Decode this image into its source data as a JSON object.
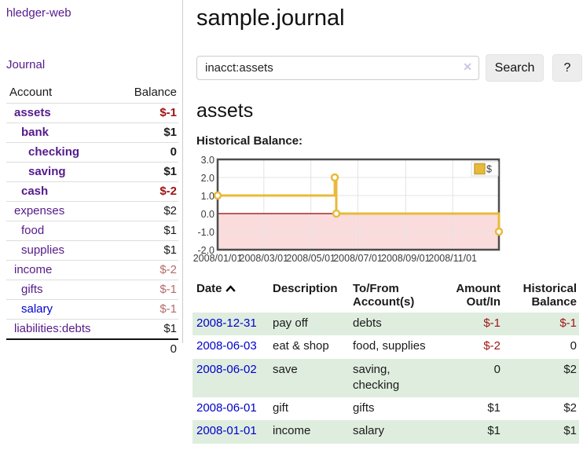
{
  "brand": "hledger-web",
  "nav": {
    "journal": "Journal"
  },
  "sidebar": {
    "account_header": "Account",
    "balance_header": "Balance",
    "rows": [
      {
        "name": "assets",
        "balance": "$-1"
      },
      {
        "name": "bank",
        "balance": "$1"
      },
      {
        "name": "checking",
        "balance": "0"
      },
      {
        "name": "saving",
        "balance": "$1"
      },
      {
        "name": "cash",
        "balance": "$-2"
      },
      {
        "name": "expenses",
        "balance": "$2"
      },
      {
        "name": "food",
        "balance": "$1"
      },
      {
        "name": "supplies",
        "balance": "$1"
      },
      {
        "name": "income",
        "balance": "$-2"
      },
      {
        "name": "gifts",
        "balance": "$-1"
      },
      {
        "name": "salary",
        "balance": "$-1"
      },
      {
        "name": "liabilities:debts",
        "balance": "$1"
      }
    ],
    "total": "0"
  },
  "header": {
    "title": "sample.journal"
  },
  "search": {
    "value": "inacct:assets",
    "clear_icon": "✕",
    "search_button": "Search",
    "help_button": "?"
  },
  "account_page": {
    "title": "assets",
    "chart_title": "Historical Balance:"
  },
  "chart_data": {
    "type": "line",
    "title": "Historical Balance:",
    "step": true,
    "x_range": [
      "2008-01-01",
      "2008-12-31"
    ],
    "ylim": [
      -2,
      3
    ],
    "series": [
      {
        "name": "$",
        "color": "#e8ba3c",
        "points": [
          [
            "2008-01-01",
            1
          ],
          [
            "2008-06-01",
            2
          ],
          [
            "2008-06-03",
            0
          ],
          [
            "2008-12-31",
            -1
          ]
        ]
      }
    ],
    "x_ticks": [
      "2008/01/01",
      "2008/03/01",
      "2008/05/01",
      "2008/07/01",
      "2008/09/01",
      "2008/11/01"
    ],
    "y_ticks": [
      "3.0",
      "2.0",
      "1.0",
      "0.0",
      "-1.0",
      "-2.0"
    ],
    "legend": {
      "label": "$",
      "position": "top-right"
    },
    "grid": true,
    "negative_region_color": "#fbdcdc",
    "zero_line_color": "#990000"
  },
  "register": {
    "headers": {
      "date": "Date",
      "description": "Description",
      "accounts": "To/From Account(s)",
      "amount": "Amount Out/In",
      "balance": "Historical Balance"
    },
    "rows": [
      {
        "date": "2008-12-31",
        "description": "pay off",
        "accounts": "debts",
        "amount": "$-1",
        "balance": "$-1"
      },
      {
        "date": "2008-06-03",
        "description": "eat & shop",
        "accounts": "food, supplies",
        "amount": "$-2",
        "balance": "0"
      },
      {
        "date": "2008-06-02",
        "description": "save",
        "accounts": "saving, checking",
        "amount": "0",
        "balance": "$2"
      },
      {
        "date": "2008-06-01",
        "description": "gift",
        "accounts": "gifts",
        "amount": "$1",
        "balance": "$2"
      },
      {
        "date": "2008-01-01",
        "description": "income",
        "accounts": "salary",
        "amount": "$1",
        "balance": "$1"
      }
    ]
  },
  "colors": {
    "link_purple": "#551a8b",
    "link_blue": "#0000cc",
    "negative_strong": "#9e1212",
    "negative_light": "#b56a6a",
    "row_green": "#dfeddf",
    "chart_gold": "#e8ba3c",
    "chart_negative_region": "#fbdcdc",
    "chart_zero_line": "#990000",
    "button_bg": "#ededed"
  }
}
